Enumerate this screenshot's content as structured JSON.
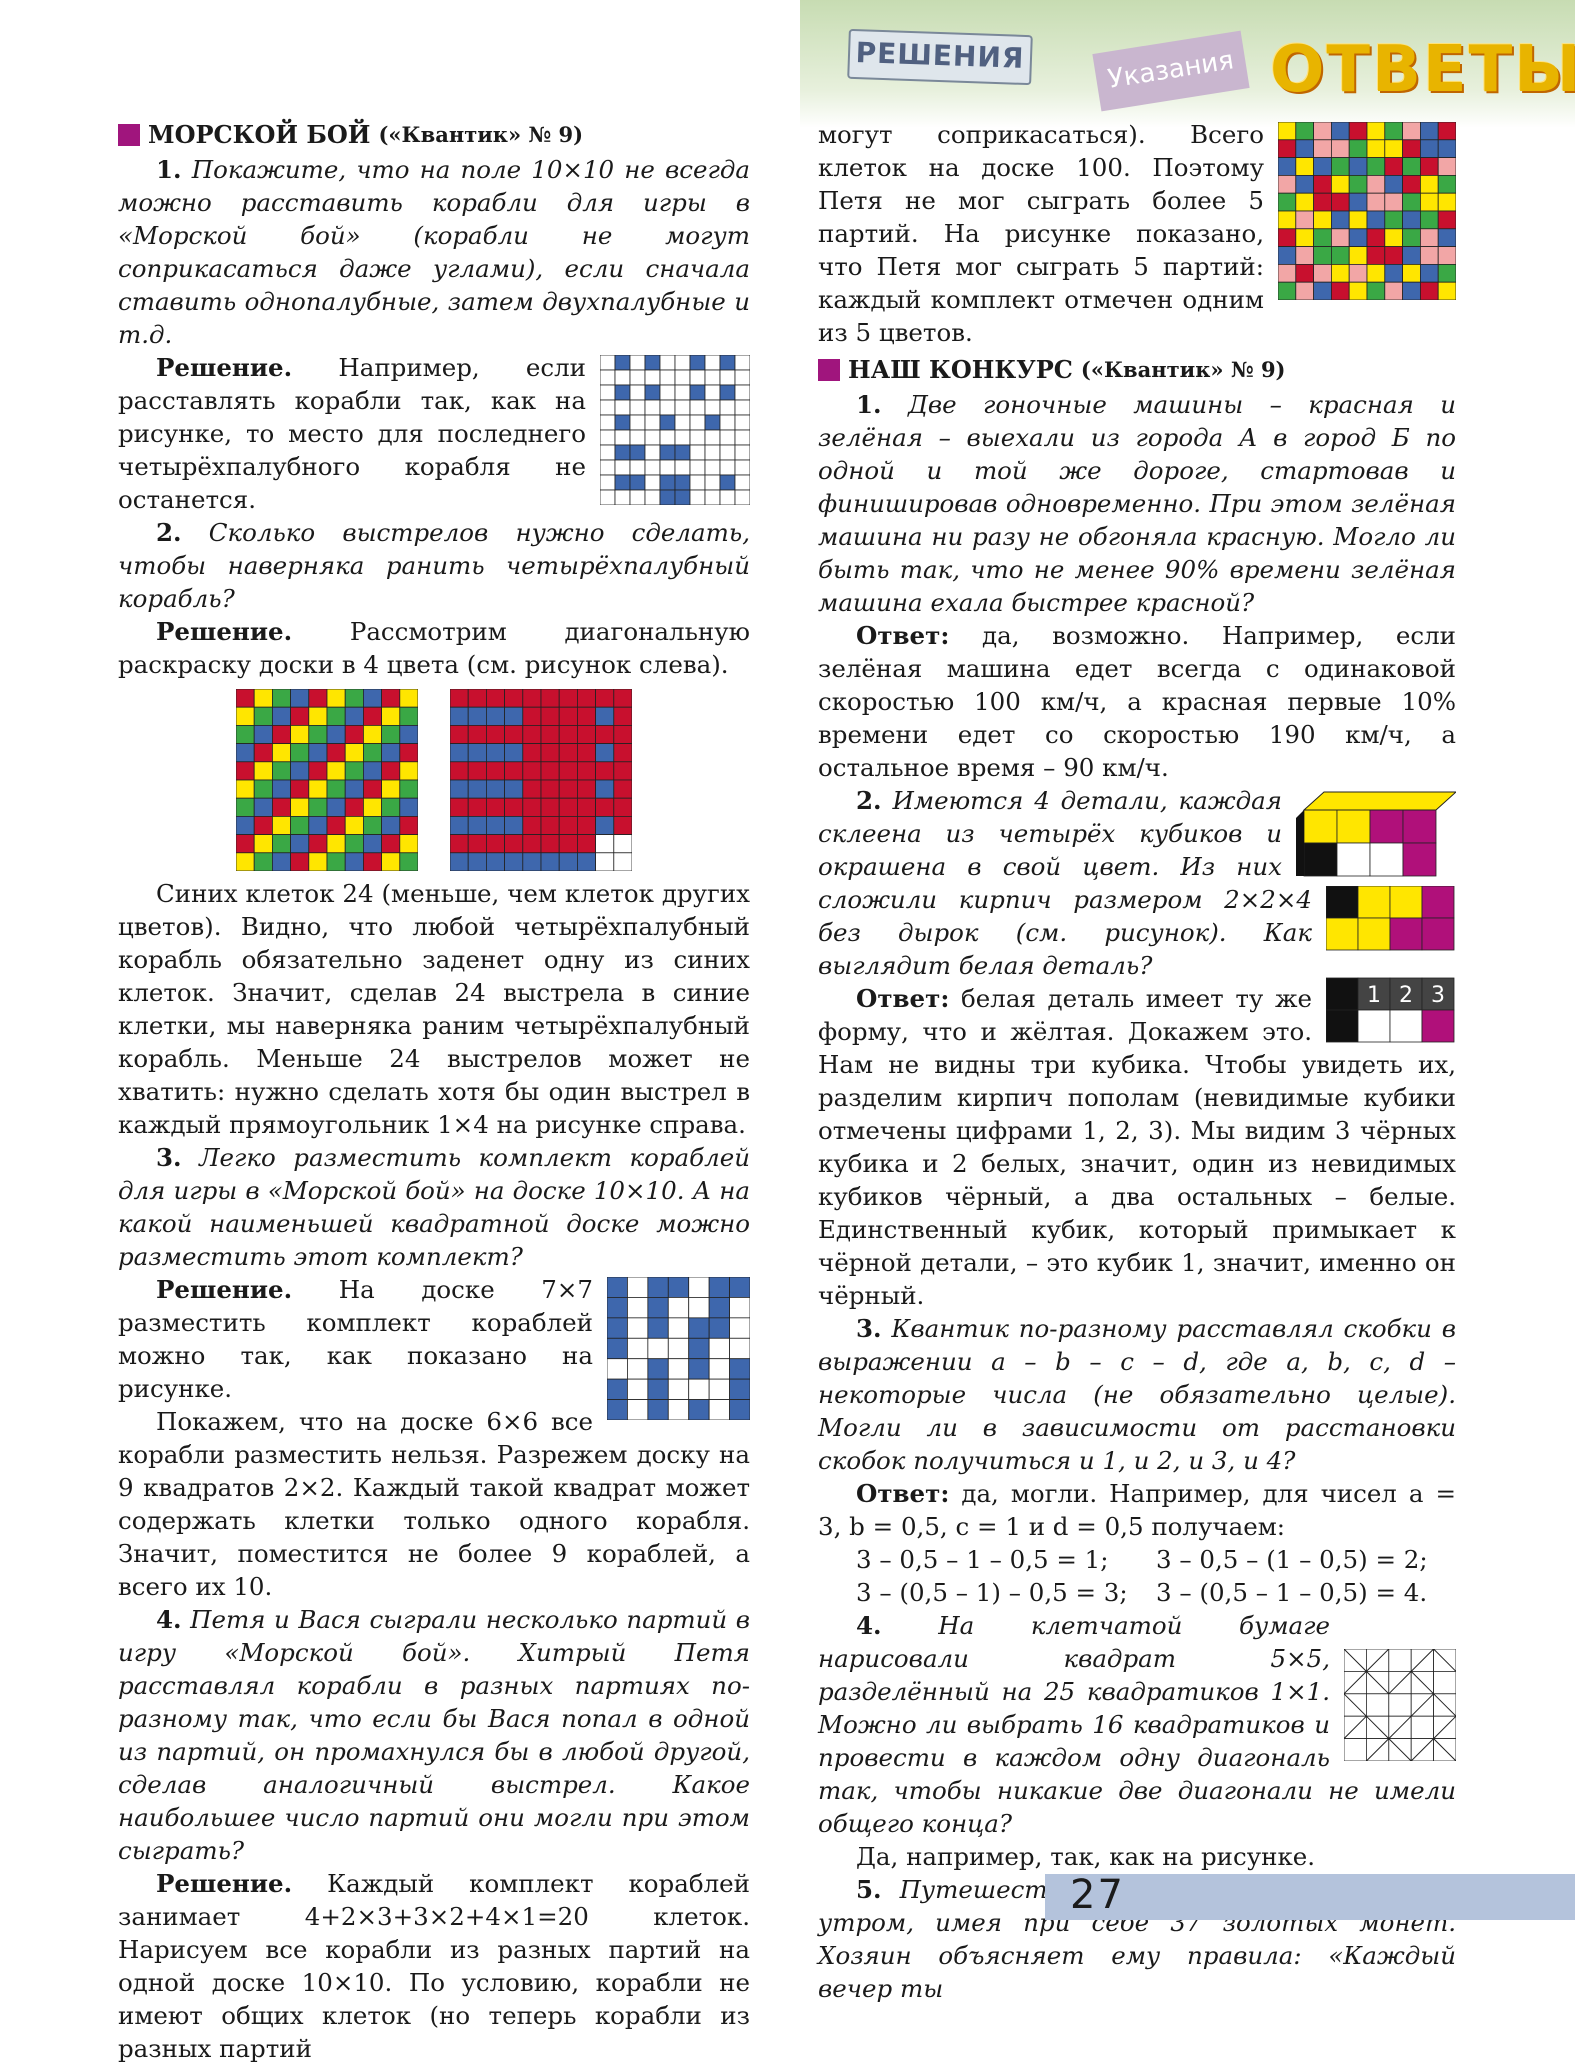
{
  "header": {
    "tag_solutions": "РЕШЕНИЯ",
    "tag_hints": "Указания",
    "tag_answers": "ОТВЕТЫ"
  },
  "page_number": "27",
  "colors": {
    "section_marker": "#a0157d",
    "blue": "#3e67ad",
    "yellow": "#ffe600",
    "green": "#3aa845",
    "red": "#c8102e",
    "magenta": "#b0107a",
    "pink": "#f2a6a6"
  },
  "left": {
    "sec_title": "МОРСКОЙ БОЙ",
    "sec_src": "(«Квантик» № 9)",
    "p1_num": "1.",
    "p1_q": "Покажите, что на поле 10×10 не всегда можно расставить корабли для игры в «Морской бой» (корабли не могут соприкасаться даже углами), если сначала ставить однопалубные, затем двухпалубные и т.д.",
    "p2_lead": "Решение.",
    "p2": "Например, если расставлять корабли так, как на рисунке, то место для последнего четырёхпалубного корабля не останется.",
    "p3_num": "2.",
    "p3_q": "Сколько выстрелов нужно сделать, чтобы наверняка ранить четырёхпалубный корабль?",
    "p4_lead": "Решение.",
    "p4": "Рассмотрим диагональную раскраску доски в 4 цвета (см. рисунок слева).",
    "p5": "Синих клеток 24 (меньше, чем клеток других цветов). Видно, что любой четырёхпалубный корабль обязательно заденет одну из синих клеток. Значит, сделав 24 выстрела в синие клетки, мы наверняка раним четырёхпалубный корабль. Меньше 24 выстрелов может не хватить: нужно сделать хотя бы один выстрел в каждый прямоугольник 1×4 на рисунке справа.",
    "p6_num": "3.",
    "p6_q": "Легко разместить комплект кораблей для игры в «Морской бой» на доске 10×10. А на какой наименьшей квадратной доске можно разместить этот комплект?",
    "p7_lead": "Решение.",
    "p7": "На доске 7×7 разместить комплект кораблей можно так, как показано на рисунке.",
    "p8": "Покажем, что на доске 6×6 все корабли разместить нельзя. Разрежем доску на 9 квадратов 2×2. Каждый такой квадрат может содержать клетки только одного корабля. Значит, поместится не более 9 кораблей, а всего их 10.",
    "p9_num": "4.",
    "p9_q": "Петя и Вася сыграли несколько партий в игру «Морской бой». Хитрый Петя расставлял корабли в разных партиях по-разному так, что если бы Вася попал в одной из партий, он промахнулся бы в любой другой, сделав аналогичный выстрел. Какое наибольшее число партий они могли при этом сыграть?",
    "p10_lead": "Решение.",
    "p10": "Каждый комплект кораблей занимает 4+2×3+3×2+4×1=20 клеток. Нарисуем все корабли из разных партий на одной доске 10×10. По условию, корабли не имеют общих клеток (но теперь корабли из разных партий"
  },
  "right": {
    "p1": "могут соприкасаться). Всего клеток на доске 100. Поэтому Петя не мог сыграть более 5 партий. На рисунке показано, что Петя мог сыграть 5 партий: каждый комплект отмечен одним из 5 цветов.",
    "sec_title": "НАШ КОНКУРС",
    "sec_src": "(«Квантик» № 9)",
    "q1_num": "1.",
    "q1": "Две гоночные машины – красная и зелёная – выехали из города А в город Б по одной и той же дороге, стартовав и финишировав одновременно. При этом зелёная машина ни разу не обгоняла красную. Могло ли быть так, что не менее 90% времени зелёная машина ехала быстрее красной?",
    "a1_lead": "Ответ:",
    "a1": "да, возможно. Например, если зелёная машина едет всегда с одинаковой скоростью 100 км/ч, а красная первые 10% времени едет со скоростью 190 км/ч, а остальное время – 90 км/ч.",
    "q2_num": "2.",
    "q2": "Имеются 4 детали, каждая склеена из четырёх кубиков и окрашена в свой цвет. Из них сложили кирпич размером 2×2×4 без дырок (см. рисунок). Как выглядит белая деталь?",
    "a2_lead": "Ответ:",
    "a2": "белая деталь имеет ту же форму, что и жёлтая. Докажем это. Нам не видны три кубика. Чтобы увидеть их, разделим кирпич пополам (невидимые кубики отмечены цифрами 1, 2, 3). Мы видим 3 чёрных кубика и 2 белых, значит, один из невидимых кубиков чёрный, а два остальных – белые. Единственный кубик, который примыкает к чёрной детали, – это кубик 1, значит, именно он чёрный.",
    "q3_num": "3.",
    "q3": "Квантик по-разному расставлял скобки в выражении a – b – c – d, где a, b, c, d – некоторые числа (не обязательно целые). Могли ли в зависимости от расстановки скобок получиться и 1, и 2, и 3, и 4?",
    "a3_lead": "Ответ:",
    "a3": "да, могли. Например, для чисел a = 3, b = 0,5, c = 1 и d = 0,5 получаем:",
    "eq1": "3 – 0,5 – 1 – 0,5 = 1;",
    "eq2": "3 – 0,5 – (1 – 0,5) = 2;",
    "eq3": "3 – (0,5 – 1) – 0,5 = 3;",
    "eq4": "3 – (0,5 – 1 – 0,5) = 4.",
    "q4_num": "4.",
    "q4": "На клетчатой бумаге нарисовали квадрат 5×5, разделённый на 25 квадратиков 1×1. Можно ли выбрать 16 квадратиков и провести в каждом одну диагональ так, чтобы никакие две диагонали не имели общего конца?",
    "a4": "Да, например, так, как на рисунке.",
    "q5_num": "5.",
    "q5": "Путешественник приехал в гостиницу утром, имея при себе 37 золотых монет. Хозяин объясняет ему правила: «Каждый вечер ты",
    "slice_labels": [
      "1",
      "2",
      "3"
    ]
  }
}
